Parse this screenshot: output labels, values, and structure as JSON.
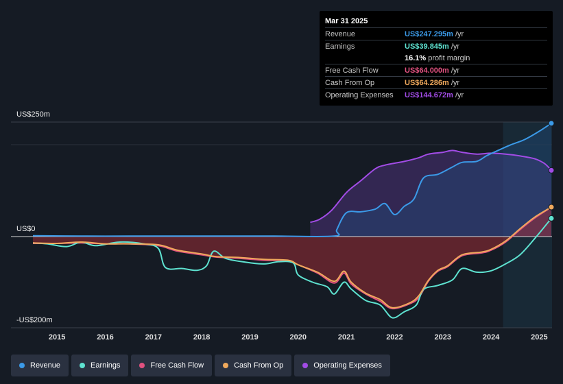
{
  "tooltip": {
    "date": "Mar 31 2025",
    "rows": [
      {
        "label": "Revenue",
        "value": "US$247.295m",
        "unit": "/yr",
        "color": "#3b9ae8"
      },
      {
        "label": "Earnings",
        "value": "US$39.845m",
        "unit": "/yr",
        "color": "#5ee2d0"
      },
      {
        "label": "",
        "value": "16.1%",
        "unit": "profit margin",
        "color": "#ffffff"
      },
      {
        "label": "Free Cash Flow",
        "value": "US$64.000m",
        "unit": "/yr",
        "color": "#e0517f"
      },
      {
        "label": "Cash From Op",
        "value": "US$64.286m",
        "unit": "/yr",
        "color": "#f0a95c"
      },
      {
        "label": "Operating Expenses",
        "value": "US$144.672m",
        "unit": "/yr",
        "color": "#a24ce6"
      }
    ]
  },
  "legend": [
    {
      "label": "Revenue",
      "color": "#3b9ae8"
    },
    {
      "label": "Earnings",
      "color": "#5ee2d0"
    },
    {
      "label": "Free Cash Flow",
      "color": "#e0517f"
    },
    {
      "label": "Cash From Op",
      "color": "#f0a95c"
    },
    {
      "label": "Operating Expenses",
      "color": "#a24ce6"
    }
  ],
  "chart_data": {
    "type": "line",
    "title": "",
    "xlabel": "",
    "ylabel": "",
    "y_labels": [
      "US$250m",
      "US$0",
      "-US$200m"
    ],
    "ylim": [
      -200,
      250
    ],
    "xlim": [
      2014.5,
      2025.25
    ],
    "x_ticks": [
      2015,
      2016,
      2017,
      2018,
      2019,
      2020,
      2021,
      2022,
      2023,
      2024,
      2025
    ],
    "x_tick_labels": [
      "2015",
      "2016",
      "2017",
      "2018",
      "2019",
      "2020",
      "2021",
      "2022",
      "2023",
      "2024",
      "2025"
    ],
    "highlight_from": 2024.25,
    "series": [
      {
        "name": "Revenue",
        "color": "#3b9ae8",
        "points": [
          [
            2014.5,
            2
          ],
          [
            2015.5,
            1
          ],
          [
            2016.5,
            1
          ],
          [
            2017.5,
            1
          ],
          [
            2018.5,
            1
          ],
          [
            2019.5,
            1
          ],
          [
            2020.75,
            1
          ],
          [
            2020.8,
            15
          ],
          [
            2021.0,
            52
          ],
          [
            2021.3,
            54
          ],
          [
            2021.6,
            60
          ],
          [
            2021.8,
            72
          ],
          [
            2022.0,
            48
          ],
          [
            2022.2,
            66
          ],
          [
            2022.4,
            82
          ],
          [
            2022.6,
            128
          ],
          [
            2022.9,
            136
          ],
          [
            2023.2,
            152
          ],
          [
            2023.4,
            162
          ],
          [
            2023.7,
            164
          ],
          [
            2023.9,
            176
          ],
          [
            2024.1,
            186
          ],
          [
            2024.4,
            200
          ],
          [
            2024.7,
            212
          ],
          [
            2025.0,
            230
          ],
          [
            2025.25,
            247.3
          ]
        ]
      },
      {
        "name": "Earnings",
        "color": "#5ee2d0",
        "points": [
          [
            2014.5,
            -14
          ],
          [
            2014.8,
            -16
          ],
          [
            2015.2,
            -22
          ],
          [
            2015.5,
            -12
          ],
          [
            2015.8,
            -20
          ],
          [
            2016.3,
            -12
          ],
          [
            2016.8,
            -16
          ],
          [
            2017.1,
            -26
          ],
          [
            2017.25,
            -68
          ],
          [
            2017.6,
            -70
          ],
          [
            2017.9,
            -74
          ],
          [
            2018.1,
            -64
          ],
          [
            2018.25,
            -32
          ],
          [
            2018.5,
            -48
          ],
          [
            2018.9,
            -56
          ],
          [
            2019.3,
            -60
          ],
          [
            2019.6,
            -55
          ],
          [
            2019.9,
            -58
          ],
          [
            2020.0,
            -84
          ],
          [
            2020.3,
            -100
          ],
          [
            2020.6,
            -110
          ],
          [
            2020.75,
            -126
          ],
          [
            2020.95,
            -100
          ],
          [
            2021.1,
            -115
          ],
          [
            2021.4,
            -140
          ],
          [
            2021.7,
            -150
          ],
          [
            2021.95,
            -178
          ],
          [
            2022.2,
            -165
          ],
          [
            2022.45,
            -150
          ],
          [
            2022.6,
            -116
          ],
          [
            2022.9,
            -107
          ],
          [
            2023.2,
            -95
          ],
          [
            2023.4,
            -70
          ],
          [
            2023.7,
            -78
          ],
          [
            2024.0,
            -75
          ],
          [
            2024.3,
            -60
          ],
          [
            2024.6,
            -40
          ],
          [
            2024.9,
            -5
          ],
          [
            2025.25,
            39.8
          ]
        ]
      },
      {
        "name": "Free Cash Flow",
        "color": "#e0517f",
        "points": [
          [
            2014.5,
            -15
          ],
          [
            2015.0,
            -15
          ],
          [
            2015.5,
            -14
          ],
          [
            2016.0,
            -16
          ],
          [
            2016.5,
            -16
          ],
          [
            2017.1,
            -20
          ],
          [
            2017.5,
            -32
          ],
          [
            2018.0,
            -40
          ],
          [
            2018.3,
            -45
          ],
          [
            2018.8,
            -48
          ],
          [
            2019.3,
            -52
          ],
          [
            2019.8,
            -53
          ],
          [
            2020.0,
            -62
          ],
          [
            2020.4,
            -80
          ],
          [
            2020.75,
            -102
          ],
          [
            2020.95,
            -80
          ],
          [
            2021.1,
            -104
          ],
          [
            2021.4,
            -126
          ],
          [
            2021.7,
            -142
          ],
          [
            2021.95,
            -158
          ],
          [
            2022.3,
            -148
          ],
          [
            2022.5,
            -134
          ],
          [
            2022.7,
            -98
          ],
          [
            2022.9,
            -76
          ],
          [
            2023.1,
            -66
          ],
          [
            2023.4,
            -42
          ],
          [
            2023.8,
            -36
          ],
          [
            2024.0,
            -30
          ],
          [
            2024.3,
            -12
          ],
          [
            2024.6,
            15
          ],
          [
            2024.9,
            40
          ],
          [
            2025.25,
            64.0
          ]
        ]
      },
      {
        "name": "Cash From Op",
        "color": "#f0a95c",
        "points": [
          [
            2014.5,
            -14
          ],
          [
            2015.0,
            -15
          ],
          [
            2015.5,
            -12
          ],
          [
            2016.0,
            -16
          ],
          [
            2016.5,
            -16
          ],
          [
            2017.1,
            -18
          ],
          [
            2017.5,
            -30
          ],
          [
            2018.0,
            -38
          ],
          [
            2018.3,
            -44
          ],
          [
            2018.8,
            -46
          ],
          [
            2019.3,
            -50
          ],
          [
            2019.8,
            -52
          ],
          [
            2020.0,
            -62
          ],
          [
            2020.4,
            -78
          ],
          [
            2020.75,
            -98
          ],
          [
            2020.95,
            -76
          ],
          [
            2021.1,
            -100
          ],
          [
            2021.4,
            -124
          ],
          [
            2021.7,
            -138
          ],
          [
            2021.95,
            -156
          ],
          [
            2022.3,
            -146
          ],
          [
            2022.5,
            -130
          ],
          [
            2022.7,
            -96
          ],
          [
            2022.9,
            -74
          ],
          [
            2023.1,
            -64
          ],
          [
            2023.4,
            -40
          ],
          [
            2023.8,
            -34
          ],
          [
            2024.0,
            -28
          ],
          [
            2024.3,
            -10
          ],
          [
            2024.6,
            17
          ],
          [
            2024.9,
            42
          ],
          [
            2025.25,
            64.3
          ]
        ]
      },
      {
        "name": "Operating Expenses",
        "color": "#a24ce6",
        "points": [
          [
            2020.25,
            31
          ],
          [
            2020.45,
            38
          ],
          [
            2020.7,
            58
          ],
          [
            2021.0,
            96
          ],
          [
            2021.3,
            122
          ],
          [
            2021.6,
            148
          ],
          [
            2021.8,
            156
          ],
          [
            2022.2,
            164
          ],
          [
            2022.5,
            172
          ],
          [
            2022.7,
            180
          ],
          [
            2023.0,
            184
          ],
          [
            2023.2,
            188
          ],
          [
            2023.4,
            184
          ],
          [
            2023.7,
            180
          ],
          [
            2024.0,
            182
          ],
          [
            2024.3,
            180
          ],
          [
            2024.6,
            176
          ],
          [
            2024.9,
            170
          ],
          [
            2025.1,
            160
          ],
          [
            2025.25,
            144.7
          ]
        ]
      }
    ]
  }
}
